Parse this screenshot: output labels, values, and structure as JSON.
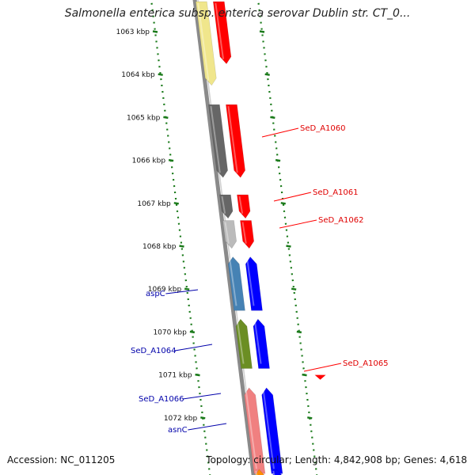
{
  "title": "Salmonella enterica subsp. enterica serovar Dublin str. CT_0...",
  "footer": {
    "accession_label": "Accession:",
    "accession": "NC_011205",
    "topology_label": "Topology:",
    "topology": "circular",
    "length_label": "Length:",
    "length": "4,842,908 bp",
    "genes_label": "Genes:",
    "genes": "4,618"
  },
  "scale": {
    "unit": "kbp",
    "ticks": [
      1063,
      1064,
      1065,
      1066,
      1067,
      1068,
      1069,
      1070,
      1071,
      1072
    ]
  },
  "colors": {
    "backbone": "#8a8a8a",
    "scale_dots": "#1a7a1a",
    "red": "#ff0000",
    "dark_red": "#aa0000",
    "blue": "#0000ff",
    "steel_blue": "#4682b4",
    "olive_green": "#6b8e23",
    "light_red": "#f08080",
    "dark_gray": "#666666",
    "light_gray": "#bbbbbb",
    "khaki": "#f0e68c",
    "orange": "#ff8c00"
  },
  "features": [
    {
      "track": "gene",
      "start": 1062.3,
      "end": 1063.75,
      "strand": "+",
      "color": "red"
    },
    {
      "track": "cds",
      "start": 1062.3,
      "end": 1064.25,
      "strand": "+",
      "color": "khaki"
    },
    {
      "track": "gene",
      "start": 1064.7,
      "end": 1066.4,
      "strand": "+",
      "color": "red",
      "label": "SeD_A1060"
    },
    {
      "track": "cds",
      "start": 1064.7,
      "end": 1066.4,
      "strand": "+",
      "color": "dark_gray"
    },
    {
      "track": "gene",
      "start": 1066.8,
      "end": 1067.35,
      "strand": "+",
      "color": "red",
      "label": "SeD_A1061"
    },
    {
      "track": "cds",
      "start": 1066.8,
      "end": 1067.35,
      "strand": "+",
      "color": "dark_gray"
    },
    {
      "track": "gene",
      "start": 1067.4,
      "end": 1068.05,
      "strand": "+",
      "color": "red",
      "label": "SeD_A1062"
    },
    {
      "track": "cds",
      "start": 1067.4,
      "end": 1068.05,
      "strand": "+",
      "color": "light_gray"
    },
    {
      "track": "gene",
      "start": 1068.25,
      "end": 1069.5,
      "strand": "-",
      "color": "blue",
      "label": "aspC"
    },
    {
      "track": "cds",
      "start": 1068.25,
      "end": 1069.5,
      "strand": "-",
      "color": "steel_blue"
    },
    {
      "track": "gene",
      "start": 1069.7,
      "end": 1070.85,
      "strand": "-",
      "color": "blue",
      "label": "SeD_A1064"
    },
    {
      "track": "cds",
      "start": 1069.7,
      "end": 1070.85,
      "strand": "-",
      "color": "olive_green"
    },
    {
      "track": "other",
      "start": 1071.0,
      "end": 1071.1,
      "strand": "+",
      "color": "red",
      "label": "SeD_A1065"
    },
    {
      "track": "gene",
      "start": 1071.3,
      "end": 1073.3,
      "strand": "-",
      "color": "blue",
      "label": "SeD_A1066"
    },
    {
      "track": "cds",
      "start": 1071.3,
      "end": 1073.3,
      "strand": "-",
      "color": "light_red",
      "label": "asnC"
    },
    {
      "track": "gene",
      "start": 1073.2,
      "end": 1073.6,
      "strand": "-",
      "color": "blue"
    },
    {
      "track": "cds",
      "start": 1073.2,
      "end": 1073.6,
      "strand": "-",
      "color": "orange"
    }
  ]
}
